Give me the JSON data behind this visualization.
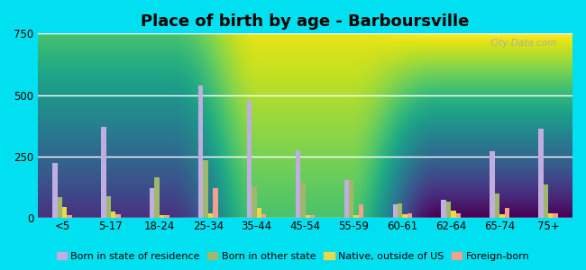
{
  "title": "Place of birth by age - Barboursville",
  "categories": [
    "<5",
    "5-17",
    "18-24",
    "25-34",
    "35-44",
    "45-54",
    "55-59",
    "60-61",
    "62-64",
    "65-74",
    "75+"
  ],
  "series": {
    "Born in state of residence": [
      225,
      370,
      120,
      540,
      480,
      275,
      155,
      55,
      75,
      270,
      365
    ],
    "Born in other state": [
      85,
      90,
      165,
      235,
      130,
      145,
      155,
      60,
      65,
      100,
      135
    ],
    "Native, outside of US": [
      45,
      25,
      10,
      20,
      40,
      10,
      10,
      15,
      30,
      15,
      20
    ],
    "Foreign-born": [
      10,
      15,
      10,
      120,
      15,
      10,
      55,
      20,
      20,
      40,
      20
    ]
  },
  "colors": {
    "Born in state of residence": "#c0aee0",
    "Born in other state": "#a0b86a",
    "Native, outside of US": "#e8d84a",
    "Foreign-born": "#f4a090"
  },
  "ylim": [
    0,
    750
  ],
  "yticks": [
    0,
    250,
    500,
    750
  ],
  "background_color_outer": "#00e0f0",
  "bg_top": "#e8f6f8",
  "bg_bottom": "#c8e8c0",
  "title_fontsize": 13,
  "legend_fontsize": 8,
  "tick_fontsize": 8.5
}
